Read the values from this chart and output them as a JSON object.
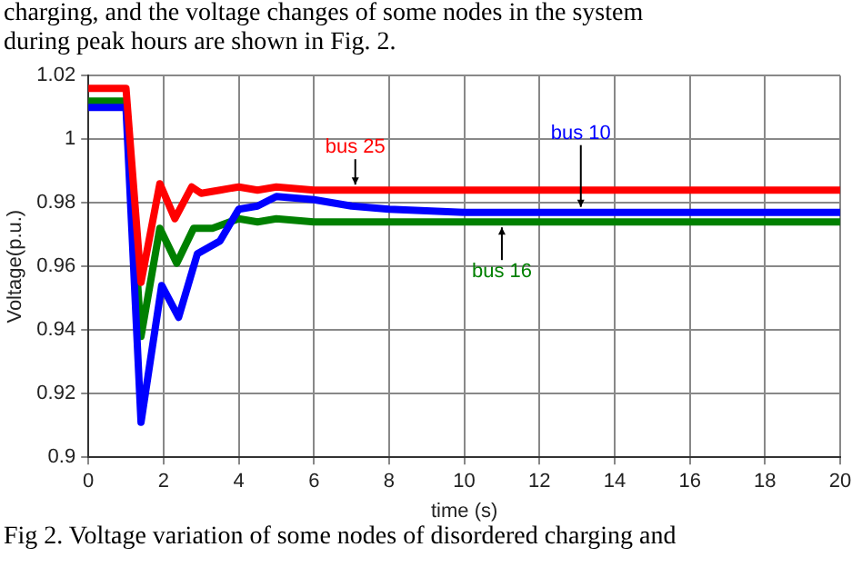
{
  "chart_data": {
    "type": "line",
    "xlabel": "time (s)",
    "ylabel": "Voltage(p.u.)",
    "annotations": [
      "charging, and the voltage changes of some nodes in the system",
      "during peak hours are shown in Fig. 2.",
      "Fig 2. Voltage variation of some nodes of disordered charging and"
    ],
    "xlim": [
      0,
      20
    ],
    "xticks": [
      0,
      2,
      4,
      6,
      8,
      10,
      12,
      14,
      16,
      18,
      20
    ],
    "ylim": [
      0.9,
      1.02
    ],
    "yticks": [
      0.9,
      0.92,
      0.94,
      0.96,
      0.98,
      1,
      1.02
    ],
    "grid": true,
    "legend": false,
    "marker": "none",
    "line_style": "solid",
    "series": [
      {
        "name": "bus 25",
        "color": "#ff0000",
        "x": [
          0,
          1,
          1.4,
          1.9,
          2.3,
          2.75,
          3,
          3.5,
          4,
          4.5,
          5,
          6,
          8,
          20
        ],
        "values": [
          1.016,
          1.016,
          0.955,
          0.986,
          0.975,
          0.985,
          0.983,
          0.984,
          0.985,
          0.984,
          0.985,
          0.984,
          0.984,
          0.984
        ]
      },
      {
        "name": "bus 10",
        "color": "#0000ff",
        "x": [
          0,
          1,
          1.4,
          1.95,
          2.4,
          2.9,
          3.5,
          4,
          4.5,
          5,
          6,
          7,
          8,
          10,
          20
        ],
        "values": [
          1.01,
          1.01,
          0.911,
          0.954,
          0.944,
          0.964,
          0.968,
          0.978,
          0.979,
          0.982,
          0.981,
          0.979,
          0.978,
          0.977,
          0.977
        ]
      },
      {
        "name": "bus 16",
        "color": "#008000",
        "x": [
          0,
          1,
          1.4,
          1.9,
          2.35,
          2.8,
          3.3,
          4,
          4.5,
          5,
          6,
          8,
          20
        ],
        "values": [
          1.012,
          1.012,
          0.938,
          0.972,
          0.961,
          0.972,
          0.972,
          0.975,
          0.974,
          0.975,
          0.974,
          0.974,
          0.974
        ]
      }
    ]
  }
}
